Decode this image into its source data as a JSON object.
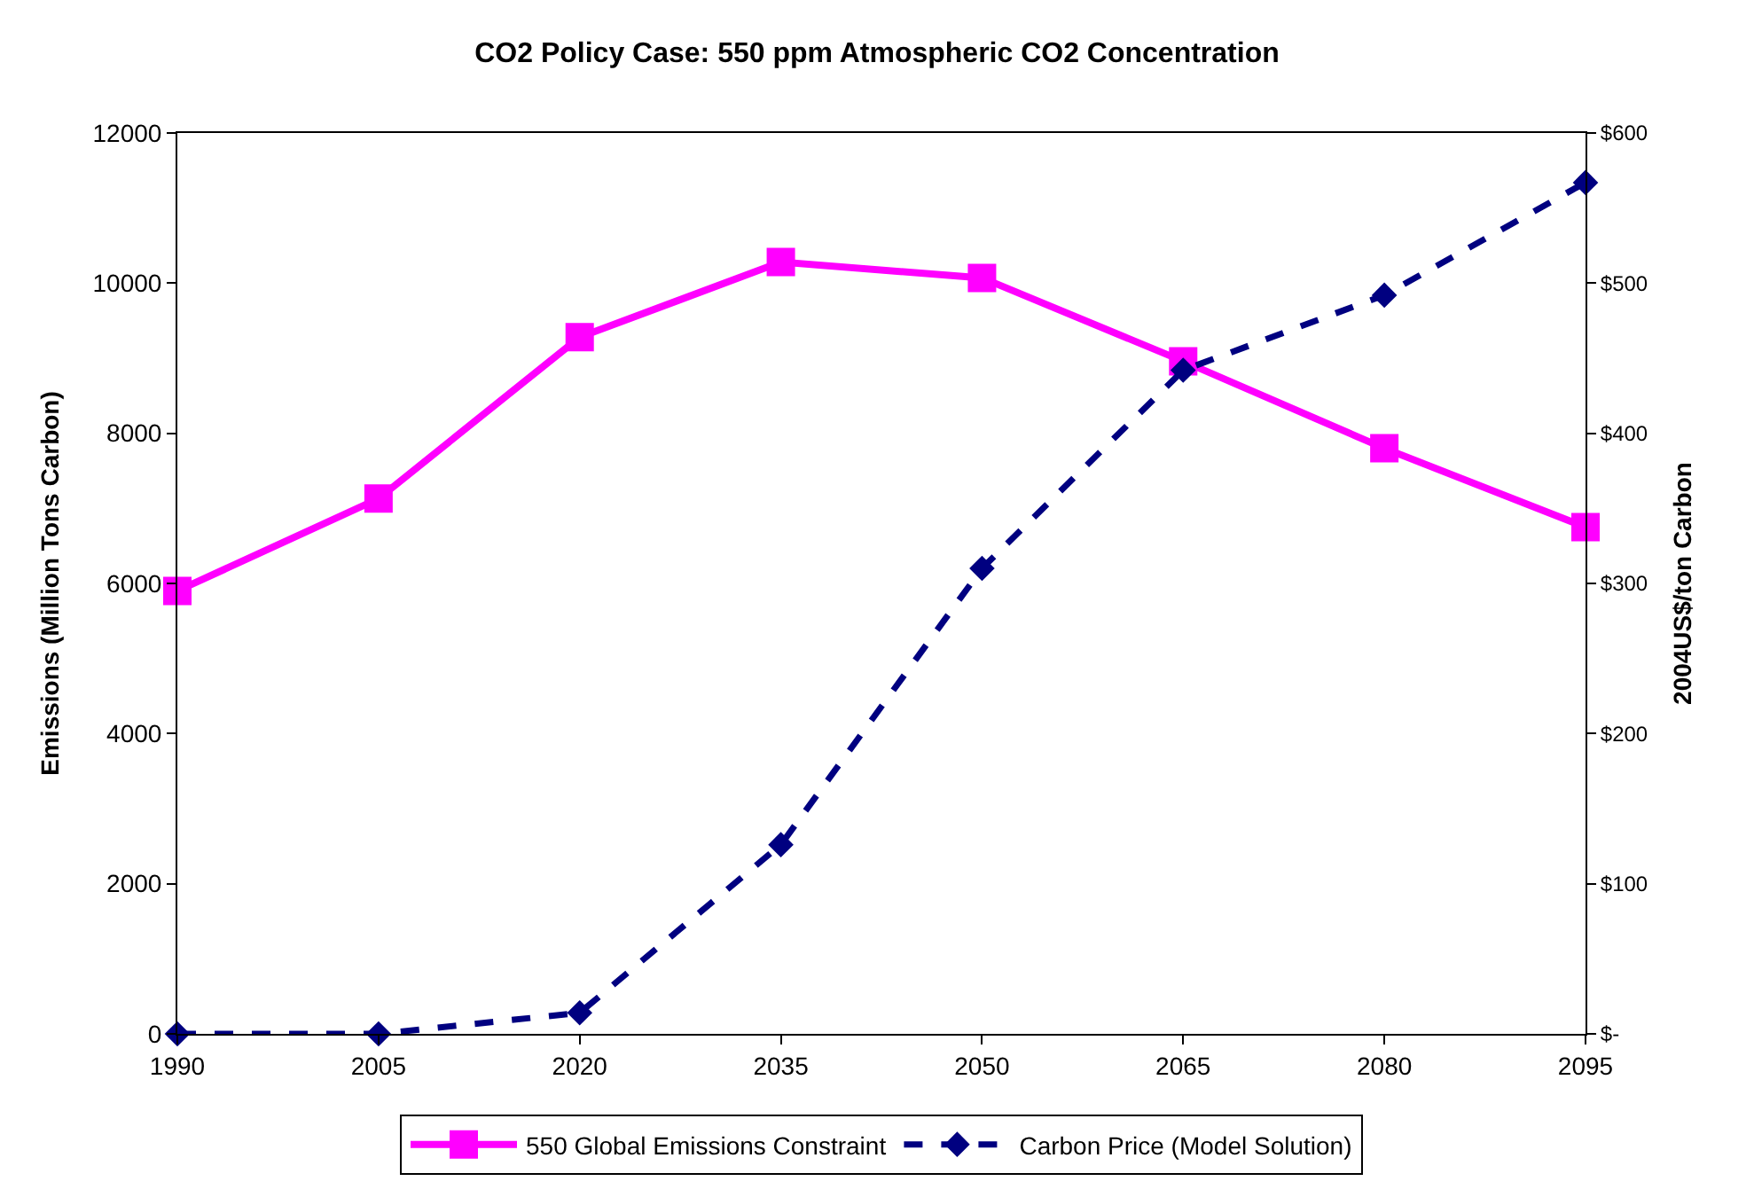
{
  "chart_data": {
    "type": "line",
    "title": "CO2 Policy Case: 550 ppm Atmospheric CO2 Concentration",
    "ylabel": "Emissions (Million Tons Carbon)",
    "y2label": "2004US$/ton Carbon",
    "x": [
      1990,
      2005,
      2020,
      2035,
      2050,
      2065,
      2080,
      2095
    ],
    "xlim": [
      1990,
      2095
    ],
    "xticks": [
      1990,
      2005,
      2020,
      2035,
      2050,
      2065,
      2080,
      2095
    ],
    "ylim": [
      0,
      12000
    ],
    "yticks": [
      0,
      2000,
      4000,
      6000,
      8000,
      10000,
      12000
    ],
    "y2lim": [
      0,
      600
    ],
    "y2ticks": [
      {
        "value": 0,
        "label": "$-"
      },
      {
        "value": 100,
        "label": "$100"
      },
      {
        "value": 200,
        "label": "$200"
      },
      {
        "value": 300,
        "label": "$300"
      },
      {
        "value": 400,
        "label": "$400"
      },
      {
        "value": 500,
        "label": "$500"
      },
      {
        "value": 600,
        "label": "$600"
      }
    ],
    "legend": "bottom",
    "series": [
      {
        "name": "550 Global Emissions Constraint",
        "color": "#ff00ff",
        "marker": "square",
        "line_style": "solid",
        "values": [
          5900,
          7130,
          9280,
          10280,
          10070,
          8960,
          7800,
          6750
        ]
      },
      {
        "name": "Carbon Price (Model Solution)",
        "color": "#000080",
        "marker": "diamond",
        "line_style": "dashed",
        "axis": "y2",
        "values": [
          0,
          0,
          14,
          126,
          310,
          442,
          492,
          567
        ]
      }
    ]
  }
}
